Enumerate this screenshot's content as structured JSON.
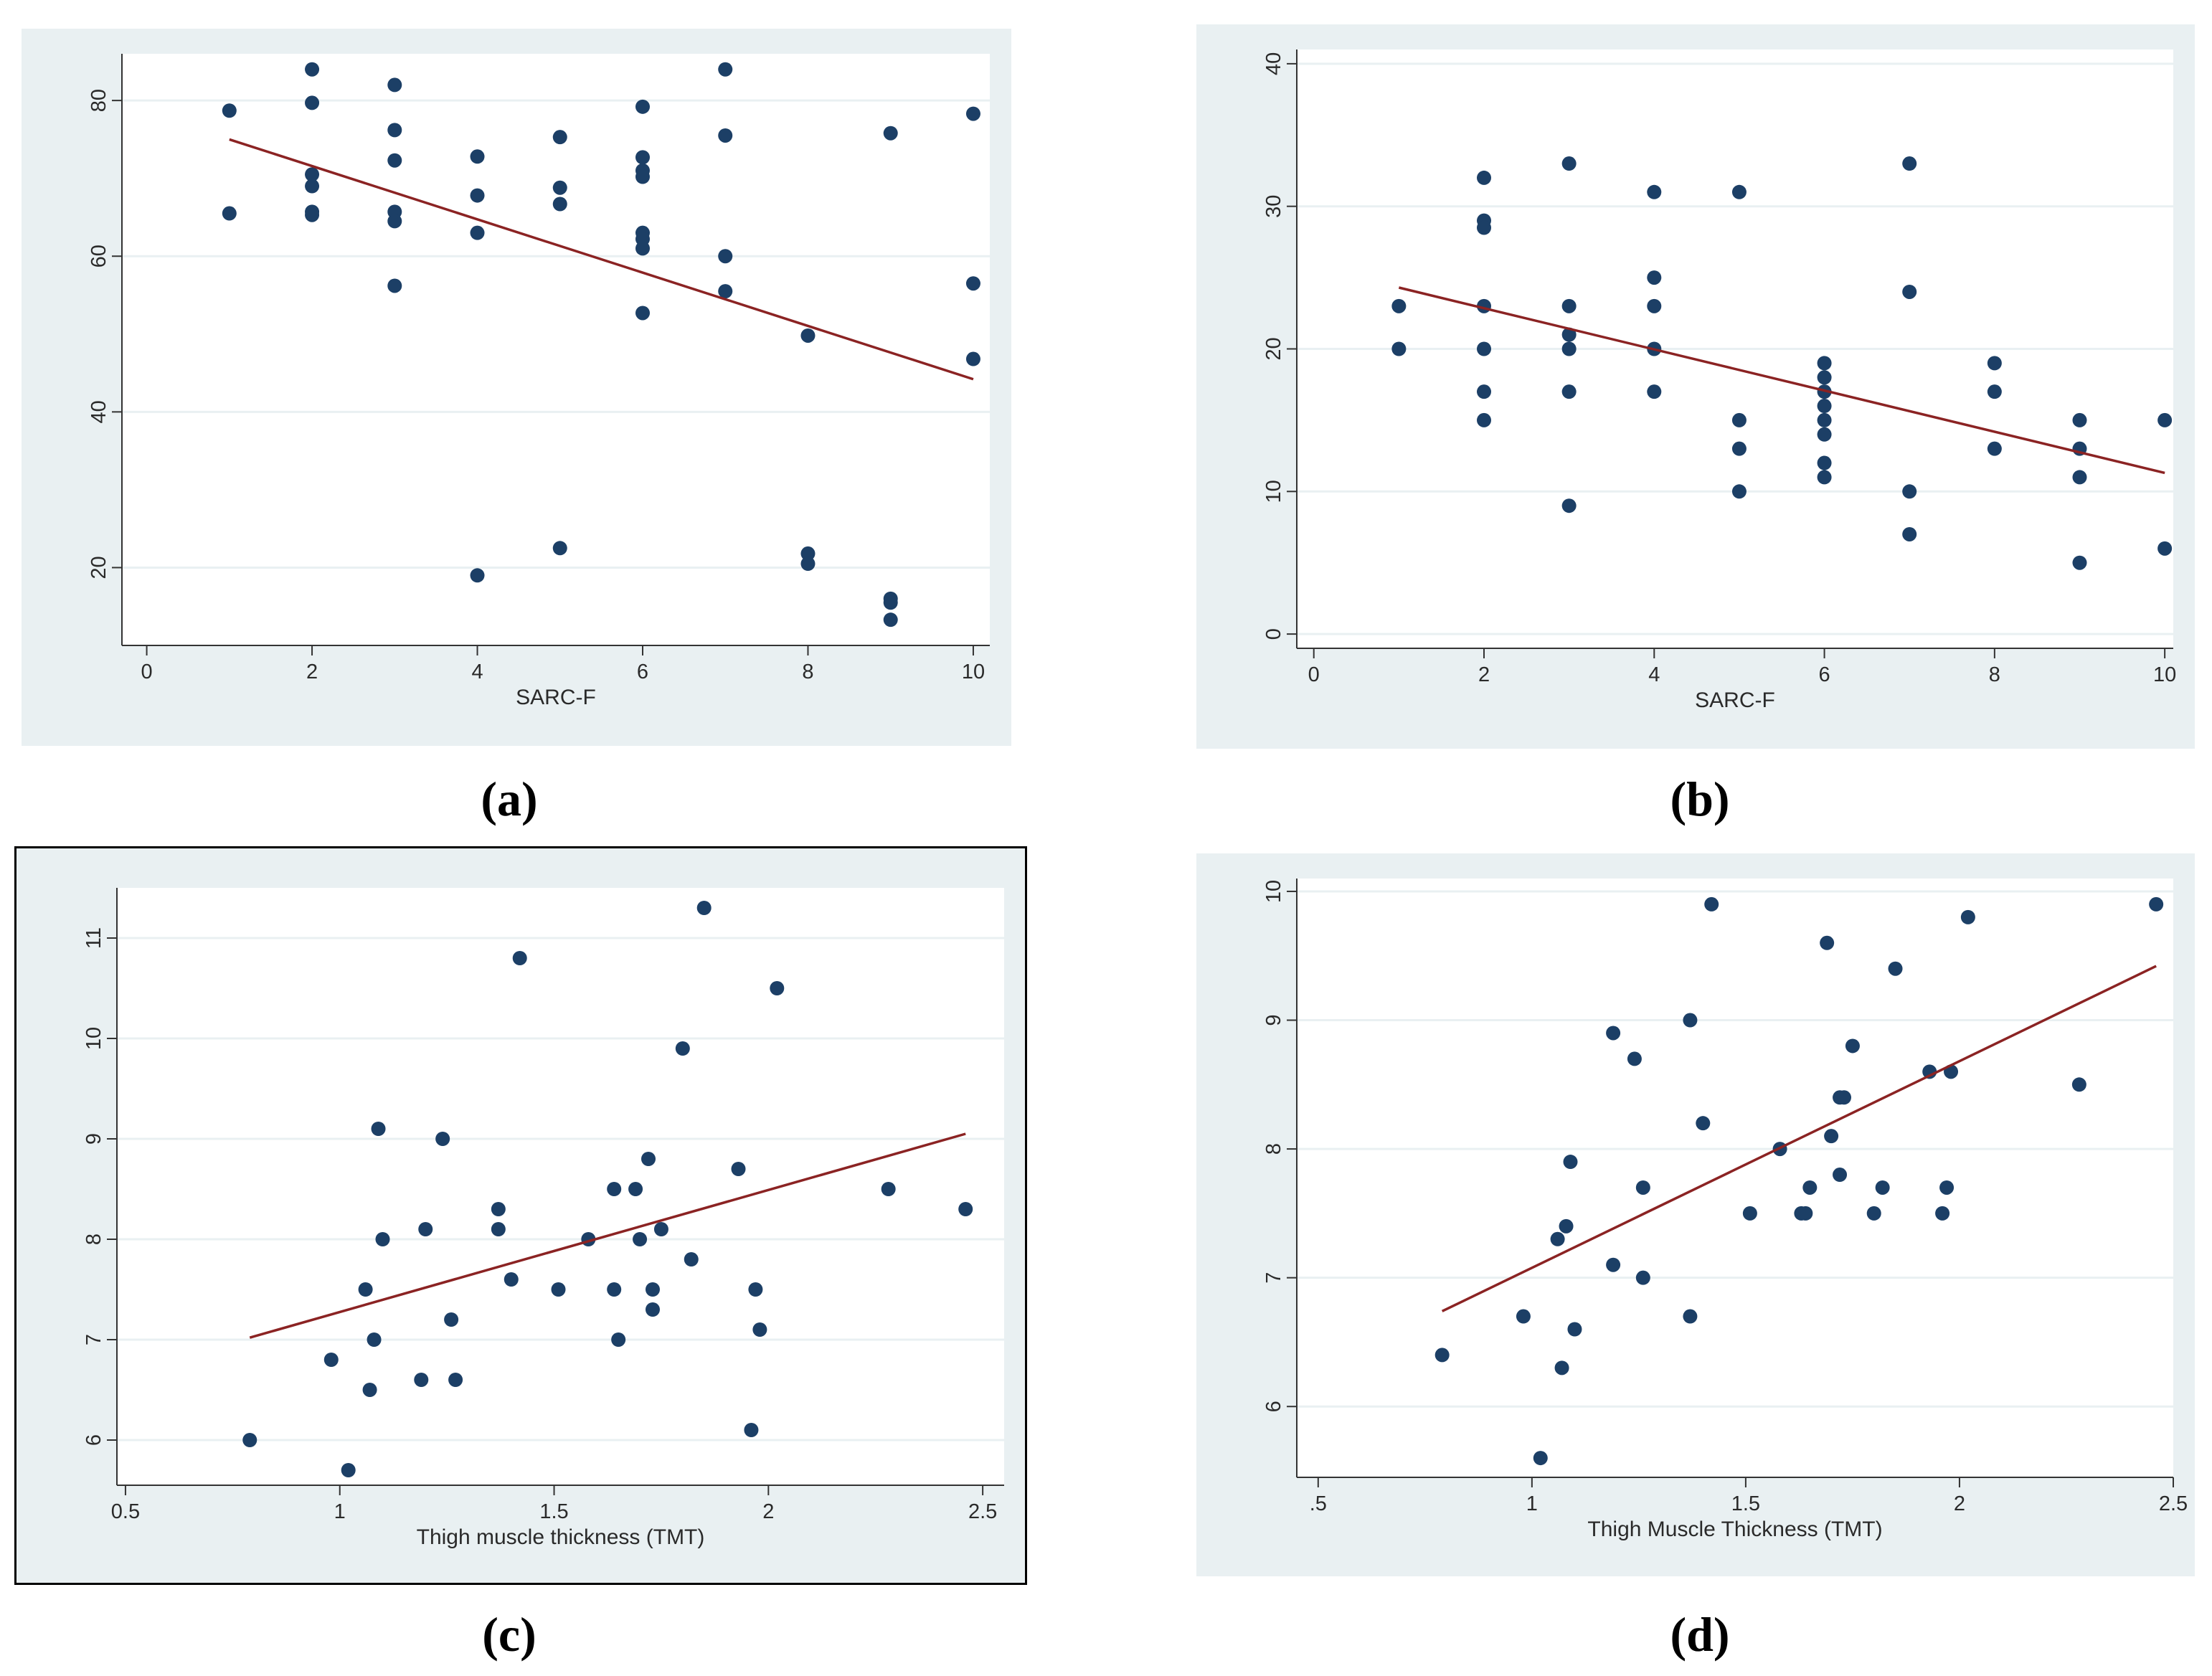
{
  "captions": [
    "(a)",
    "(b)",
    "(c)",
    "(d)"
  ],
  "colors": {
    "panel_bg": "#e9f0f2",
    "plot_bg": "#ffffff",
    "grid": "#e9f0f2",
    "marker": "#1c3f66",
    "fit_line": "#8b2323",
    "axis": "#333333"
  },
  "chart_data": [
    {
      "type": "scatter",
      "panel": "a",
      "xlabel": "SARC-F",
      "ylabel": "",
      "xlim": [
        -0.3,
        10.2
      ],
      "ylim": [
        10,
        86
      ],
      "xticks": [
        0,
        2,
        4,
        6,
        8,
        10
      ],
      "yticks": [
        20,
        40,
        60,
        80
      ],
      "xtick_labels": [
        "0",
        "2",
        "4",
        "6",
        "8",
        "10"
      ],
      "ytick_labels": [
        "20",
        "40",
        "60",
        "80"
      ],
      "grid": true,
      "points": [
        [
          1,
          78.7
        ],
        [
          1,
          65.5
        ],
        [
          2,
          84
        ],
        [
          2,
          79.7
        ],
        [
          2,
          70.5
        ],
        [
          2,
          69
        ],
        [
          2,
          65.7
        ],
        [
          2,
          65.3
        ],
        [
          3,
          82
        ],
        [
          3,
          76.2
        ],
        [
          3,
          72.3
        ],
        [
          3,
          65.7
        ],
        [
          3,
          64.5
        ],
        [
          3,
          56.2
        ],
        [
          4,
          72.8
        ],
        [
          4,
          67.8
        ],
        [
          4,
          63
        ],
        [
          4,
          19
        ],
        [
          5,
          75.3
        ],
        [
          5,
          68.8
        ],
        [
          5,
          66.7
        ],
        [
          5,
          22.5
        ],
        [
          6,
          79.2
        ],
        [
          6,
          72.7
        ],
        [
          6,
          71
        ],
        [
          6,
          70.2
        ],
        [
          6,
          63
        ],
        [
          6,
          62.2
        ],
        [
          6,
          61
        ],
        [
          6,
          52.7
        ],
        [
          7,
          84
        ],
        [
          7,
          75.5
        ],
        [
          7,
          60
        ],
        [
          7,
          55.5
        ],
        [
          8,
          49.8
        ],
        [
          8,
          21.8
        ],
        [
          8,
          20.5
        ],
        [
          9,
          75.8
        ],
        [
          9,
          16
        ],
        [
          9,
          15.5
        ],
        [
          9,
          13.3
        ],
        [
          10,
          78.3
        ],
        [
          10,
          56.5
        ],
        [
          10,
          46.8
        ]
      ],
      "fit_line": [
        [
          1,
          75
        ],
        [
          10,
          44.2
        ]
      ]
    },
    {
      "type": "scatter",
      "panel": "b",
      "xlabel": "SARC-F",
      "ylabel": "",
      "xlim": [
        -0.2,
        10.1
      ],
      "ylim": [
        -1,
        41
      ],
      "xticks": [
        0,
        2,
        4,
        6,
        8,
        10
      ],
      "yticks": [
        0,
        10,
        20,
        30,
        40
      ],
      "xtick_labels": [
        "0",
        "2",
        "4",
        "6",
        "8",
        "10"
      ],
      "ytick_labels": [
        "0",
        "10",
        "20",
        "30",
        "40"
      ],
      "grid": true,
      "points": [
        [
          1,
          23
        ],
        [
          1,
          20
        ],
        [
          2,
          32
        ],
        [
          2,
          29
        ],
        [
          2,
          28.5
        ],
        [
          2,
          23
        ],
        [
          2,
          20
        ],
        [
          2,
          17
        ],
        [
          2,
          15
        ],
        [
          3,
          33
        ],
        [
          3,
          23
        ],
        [
          3,
          21
        ],
        [
          3,
          20
        ],
        [
          3,
          17
        ],
        [
          3,
          9
        ],
        [
          4,
          31
        ],
        [
          4,
          25
        ],
        [
          4,
          23
        ],
        [
          4,
          20
        ],
        [
          4,
          17
        ],
        [
          5,
          31
        ],
        [
          5,
          15
        ],
        [
          5,
          13
        ],
        [
          5,
          10
        ],
        [
          6,
          19
        ],
        [
          6,
          18
        ],
        [
          6,
          17
        ],
        [
          6,
          16
        ],
        [
          6,
          15
        ],
        [
          6,
          14
        ],
        [
          6,
          12
        ],
        [
          6,
          11
        ],
        [
          7,
          33
        ],
        [
          7,
          24
        ],
        [
          7,
          10
        ],
        [
          7,
          7
        ],
        [
          8,
          19
        ],
        [
          8,
          17
        ],
        [
          8,
          13
        ],
        [
          9,
          15
        ],
        [
          9,
          13
        ],
        [
          9,
          11
        ],
        [
          9,
          5
        ],
        [
          10,
          15
        ],
        [
          10,
          6
        ]
      ],
      "fit_line": [
        [
          1,
          24.3
        ],
        [
          10,
          11.3
        ]
      ]
    },
    {
      "type": "scatter",
      "panel": "c",
      "xlabel": "Thigh muscle thickness (TMT)",
      "ylabel": "",
      "xlim": [
        0.48,
        2.55
      ],
      "ylim": [
        5.55,
        11.5
      ],
      "xticks": [
        0.5,
        1,
        1.5,
        2,
        2.5
      ],
      "yticks": [
        6,
        7,
        8,
        9,
        10,
        11
      ],
      "xtick_labels": [
        "0.5",
        "1",
        "1.5",
        "2",
        "2.5"
      ],
      "ytick_labels": [
        "6",
        "7",
        "8",
        "9",
        "10",
        "11"
      ],
      "grid": true,
      "points": [
        [
          0.79,
          6
        ],
        [
          0.98,
          6.8
        ],
        [
          1.02,
          5.7
        ],
        [
          1.06,
          7.5
        ],
        [
          1.07,
          6.5
        ],
        [
          1.08,
          7
        ],
        [
          1.09,
          9.1
        ],
        [
          1.1,
          8
        ],
        [
          1.19,
          6.6
        ],
        [
          1.2,
          8.1
        ],
        [
          1.24,
          9
        ],
        [
          1.26,
          7.2
        ],
        [
          1.27,
          6.6
        ],
        [
          1.37,
          8.3
        ],
        [
          1.37,
          8.1
        ],
        [
          1.4,
          7.6
        ],
        [
          1.42,
          10.8
        ],
        [
          1.51,
          7.5
        ],
        [
          1.58,
          8
        ],
        [
          1.64,
          8.5
        ],
        [
          1.64,
          7.5
        ],
        [
          1.65,
          7
        ],
        [
          1.69,
          8.5
        ],
        [
          1.7,
          8
        ],
        [
          1.72,
          8.8
        ],
        [
          1.73,
          7.5
        ],
        [
          1.73,
          7.3
        ],
        [
          1.75,
          8.1
        ],
        [
          1.8,
          9.9
        ],
        [
          1.82,
          7.8
        ],
        [
          1.85,
          11.3
        ],
        [
          1.93,
          8.7
        ],
        [
          1.96,
          6.1
        ],
        [
          1.97,
          7.5
        ],
        [
          1.98,
          7.1
        ],
        [
          2.02,
          10.5
        ],
        [
          2.28,
          8.5
        ],
        [
          2.46,
          8.3
        ]
      ],
      "fit_line": [
        [
          0.79,
          7.02
        ],
        [
          2.46,
          9.05
        ]
      ]
    },
    {
      "type": "scatter",
      "panel": "d",
      "xlabel": "Thigh Muscle Thickness (TMT)",
      "ylabel": "",
      "xlim": [
        0.45,
        2.5
      ],
      "ylim": [
        5.45,
        10.1
      ],
      "xticks": [
        0.5,
        1,
        1.5,
        2,
        2.5
      ],
      "yticks": [
        6,
        7,
        8,
        9,
        10
      ],
      "xtick_labels": [
        ".5",
        "1",
        "1.5",
        "2",
        "2.5"
      ],
      "ytick_labels": [
        "6",
        "7",
        "8",
        "9",
        "10"
      ],
      "grid": true,
      "points": [
        [
          0.79,
          6.4
        ],
        [
          0.98,
          6.7
        ],
        [
          1.02,
          5.6
        ],
        [
          1.06,
          7.3
        ],
        [
          1.07,
          6.3
        ],
        [
          1.08,
          7.4
        ],
        [
          1.09,
          7.9
        ],
        [
          1.1,
          6.6
        ],
        [
          1.19,
          7.1
        ],
        [
          1.19,
          8.9
        ],
        [
          1.24,
          8.7
        ],
        [
          1.26,
          7
        ],
        [
          1.26,
          7.7
        ],
        [
          1.37,
          9
        ],
        [
          1.37,
          6.7
        ],
        [
          1.4,
          8.2
        ],
        [
          1.42,
          9.9
        ],
        [
          1.51,
          7.5
        ],
        [
          1.58,
          8
        ],
        [
          1.63,
          7.5
        ],
        [
          1.64,
          7.5
        ],
        [
          1.65,
          7.7
        ],
        [
          1.69,
          9.6
        ],
        [
          1.7,
          8.1
        ],
        [
          1.72,
          8.4
        ],
        [
          1.73,
          8.4
        ],
        [
          1.72,
          7.8
        ],
        [
          1.75,
          8.8
        ],
        [
          1.8,
          7.5
        ],
        [
          1.82,
          7.7
        ],
        [
          1.85,
          9.4
        ],
        [
          1.93,
          8.6
        ],
        [
          1.96,
          7.5
        ],
        [
          1.97,
          7.7
        ],
        [
          1.98,
          8.6
        ],
        [
          2.02,
          9.8
        ],
        [
          2.28,
          8.5
        ],
        [
          2.46,
          9.9
        ]
      ],
      "fit_line": [
        [
          0.79,
          6.74
        ],
        [
          2.46,
          9.42
        ]
      ]
    }
  ]
}
